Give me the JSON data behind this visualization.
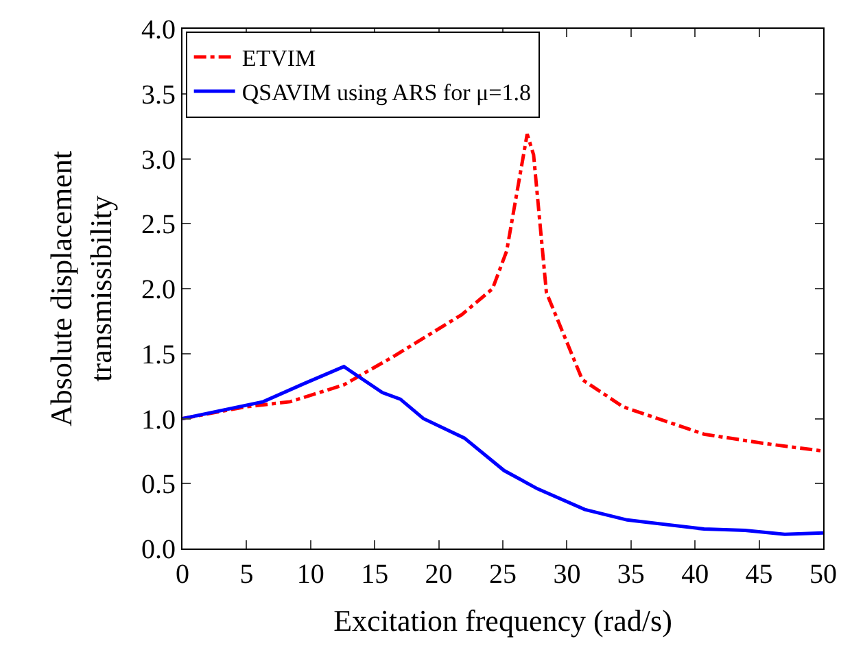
{
  "chart_data": {
    "type": "line",
    "xlabel": "Excitation frequency (rad/s)",
    "ylabel": "Absolute displacement\ntransmissibility",
    "xlim": [
      0,
      50
    ],
    "xticks": [
      0,
      5,
      10,
      15,
      20,
      25,
      30,
      35,
      40,
      45,
      50
    ],
    "ylim": [
      0,
      4
    ],
    "yticks": [
      {
        "value": 0,
        "label": "0.0"
      },
      {
        "value": 0.5,
        "label": "0.5"
      },
      {
        "value": 1,
        "label": "1.0"
      },
      {
        "value": 1.5,
        "label": "1.5"
      },
      {
        "value": 2,
        "label": "2.0"
      },
      {
        "value": 2.5,
        "label": "2.5"
      },
      {
        "value": 3,
        "label": "3.0"
      },
      {
        "value": 3.5,
        "label": "3.5"
      },
      {
        "value": 4,
        "label": "4.0"
      }
    ],
    "legend": "top left",
    "series": [
      {
        "name": "ETVIM",
        "color": "#ff0000",
        "line_style": "dashdot",
        "x": [
          0,
          4.9,
          8.4,
          12.6,
          16.5,
          21.8,
          24.2,
          25.3,
          26.9,
          27.4,
          28.4,
          31.2,
          34.4,
          40.7,
          45.3,
          50
        ],
        "values": [
          1.0,
          1.09,
          1.13,
          1.26,
          1.48,
          1.8,
          2.0,
          2.29,
          3.19,
          3.03,
          1.97,
          1.3,
          1.09,
          0.88,
          0.81,
          0.75
        ]
      },
      {
        "name": "QSAVIM using ARS for μ=1.8",
        "color": "#0000ff",
        "line_style": "solid",
        "x": [
          0,
          6.3,
          9.5,
          12.6,
          15.6,
          17,
          18.8,
          22,
          25.1,
          27.7,
          31.4,
          34.7,
          40.7,
          43.9,
          47,
          50
        ],
        "values": [
          1.0,
          1.13,
          1.27,
          1.4,
          1.2,
          1.15,
          1.0,
          0.85,
          0.6,
          0.46,
          0.3,
          0.22,
          0.15,
          0.14,
          0.11,
          0.12
        ]
      }
    ]
  }
}
